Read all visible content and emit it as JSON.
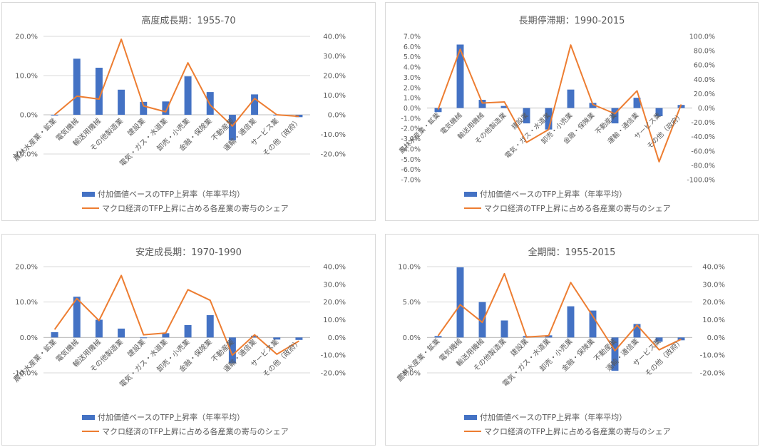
{
  "legend": {
    "bar_label": "付加価値ベースのTFP上昇率（年率平均）",
    "line_label": "マクロ経済のTFP上昇に占める各産業の寄与のシェア"
  },
  "colors": {
    "bar": "#4472c4",
    "line": "#ed7d31",
    "text": "#595959",
    "grid": "#d9d9d9"
  },
  "chart_data": [
    {
      "type": "bar",
      "title": "高度成長期：1955-70",
      "categories": [
        "農林水産業・鉱業",
        "電気機械",
        "輸送用機械",
        "その他製造業",
        "建設業",
        "電気・ガス・水道業",
        "卸売・小売業",
        "金融・保険業",
        "不動産業",
        "運輸・通信業",
        "サービス業",
        "その他（政府）"
      ],
      "series": [
        {
          "name": "付加価値ベースのTFP上昇率（年率平均）",
          "type": "bar",
          "axis": "left",
          "values": [
            -0.2,
            14.3,
            12.0,
            6.4,
            3.3,
            3.4,
            9.8,
            5.8,
            -6.5,
            5.2,
            -0.1,
            -0.6
          ]
        },
        {
          "name": "マクロ経済のTFP上昇に占める各産業の寄与のシェア",
          "type": "line",
          "axis": "right",
          "values": [
            0.0,
            9.5,
            8.0,
            38.5,
            4.5,
            1.5,
            26.5,
            5.0,
            -5.8,
            8.3,
            0.0,
            -0.8
          ]
        }
      ],
      "ylim_left": [
        -10,
        20
      ],
      "yticks_left": [
        "20.0%",
        "10.0%",
        "0.0%",
        "-10.0%"
      ],
      "ylim_right": [
        -20,
        40
      ],
      "yticks_right": [
        "40.0%",
        "30.0%",
        "20.0%",
        "10.0%",
        "0.0%",
        "-10.0%",
        "-20.0%"
      ],
      "grid": true,
      "legend_position": "bottom"
    },
    {
      "type": "bar",
      "title": "長期停滞期：1990-2015",
      "categories": [
        "農林水産業・鉱業",
        "電気機械",
        "輸送用機械",
        "その他製造業",
        "建設業",
        "電気・ガス・水道業",
        "卸売・小売業",
        "金融・保険業",
        "不動産業",
        "運輸・通信業",
        "サービス業",
        "その他（政府）"
      ],
      "series": [
        {
          "name": "付加価値ベースのTFP上昇率（年率平均）",
          "type": "bar",
          "axis": "left",
          "values": [
            -0.4,
            6.2,
            0.8,
            0.2,
            -1.5,
            -2.1,
            1.8,
            0.5,
            -1.5,
            1.0,
            -0.8,
            0.3
          ]
        },
        {
          "name": "マクロ経済のTFP上昇に占める各産業の寄与のシェア",
          "type": "line",
          "axis": "right",
          "values": [
            -2.0,
            82.0,
            7.0,
            8.5,
            -48.0,
            -30.0,
            88.0,
            5.0,
            -8.0,
            24.0,
            -75.0,
            5.0
          ]
        }
      ],
      "ylim_left": [
        -7,
        7
      ],
      "yticks_left": [
        "7.0%",
        "6.0%",
        "5.0%",
        "4.0%",
        "3.0%",
        "2.0%",
        "1.0%",
        "0.0%",
        "-1.0%",
        "-2.0%",
        "-3.0%",
        "-4.0%",
        "-5.0%",
        "-6.0%",
        "-7.0%"
      ],
      "ylim_right": [
        -100,
        100
      ],
      "yticks_right": [
        "100.0%",
        "80.0%",
        "60.0%",
        "40.0%",
        "20.0%",
        "0.0%",
        "-20.0%",
        "-40.0%",
        "-60.0%",
        "-80.0%",
        "-100.0%"
      ],
      "grid": false,
      "legend_position": "bottom"
    },
    {
      "type": "bar",
      "title": "安定成長期：1970-1990",
      "categories": [
        "農林水産業・鉱業",
        "電気機械",
        "輸送用機械",
        "その他製造業",
        "建設業",
        "電気・ガス・水道業",
        "卸売・小売業",
        "金融・保険業",
        "不動産業",
        "運輸・通信業",
        "サービス業",
        "その他（政府）"
      ],
      "series": [
        {
          "name": "付加価値ベースのTFP上昇率（年率平均）",
          "type": "bar",
          "axis": "left",
          "values": [
            1.5,
            11.5,
            5.0,
            2.5,
            0.0,
            1.2,
            3.5,
            6.3,
            -7.3,
            0.5,
            -0.6,
            -0.7
          ]
        },
        {
          "name": "マクロ経済のTFP上昇に占める各産業の寄与のシェア",
          "type": "line",
          "axis": "right",
          "values": [
            4.5,
            22.0,
            9.5,
            35.0,
            1.5,
            2.5,
            27.0,
            21.0,
            -10.0,
            1.5,
            -9.5,
            -2.0
          ]
        }
      ],
      "ylim_left": [
        -10,
        20
      ],
      "yticks_left": [
        "20.0%",
        "10.0%",
        "0.0%",
        "-10.0%"
      ],
      "ylim_right": [
        -20,
        40
      ],
      "yticks_right": [
        "40.0%",
        "30.0%",
        "20.0%",
        "10.0%",
        "0.0%",
        "-10.0%",
        "-20.0%"
      ],
      "grid": true,
      "legend_position": "bottom"
    },
    {
      "type": "bar",
      "title": "全期間：1955-2015",
      "categories": [
        "農林水産業・鉱業",
        "電気機械",
        "輸送用機械",
        "その他製造業",
        "建設業",
        "電気・ガス・水道業",
        "卸売・小売業",
        "金融・保険業",
        "不動産業",
        "運輸・通信業",
        "サービス業",
        "その他（政府）"
      ],
      "series": [
        {
          "name": "付加価値ベースのTFP上昇率（年率平均）",
          "type": "bar",
          "axis": "left",
          "values": [
            0.2,
            9.9,
            5.0,
            2.4,
            0.2,
            0.3,
            4.4,
            3.8,
            -4.7,
            1.9,
            -0.6,
            -0.4
          ]
        },
        {
          "name": "マクロ経済のTFP上昇に占める各産業の寄与のシェア",
          "type": "line",
          "axis": "right",
          "values": [
            1.0,
            18.5,
            8.5,
            36.0,
            0.2,
            1.0,
            31.0,
            12.0,
            -7.5,
            7.0,
            -7.0,
            -1.0
          ]
        }
      ],
      "ylim_left": [
        -5,
        10
      ],
      "yticks_left": [
        "10.0%",
        "5.0%",
        "0.0%",
        "-5.0%"
      ],
      "ylim_right": [
        -20,
        40
      ],
      "yticks_right": [
        "40.0%",
        "30.0%",
        "20.0%",
        "10.0%",
        "0.0%",
        "-10.0%",
        "-20.0%"
      ],
      "grid": true,
      "legend_position": "bottom"
    }
  ]
}
